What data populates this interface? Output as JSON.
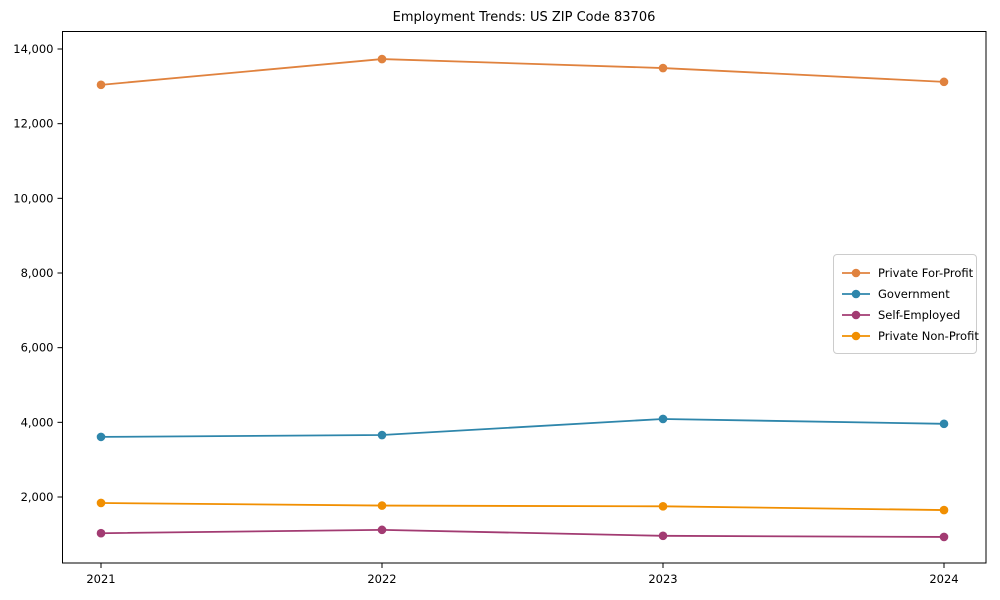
{
  "chart_data": {
    "type": "line",
    "title": "Employment Trends: US ZIP Code 83706",
    "categories": [
      "2021",
      "2022",
      "2023",
      "2024"
    ],
    "series": [
      {
        "name": "Private For-Profit",
        "color": "#E0823E",
        "values": [
          13040,
          13730,
          13490,
          13120
        ]
      },
      {
        "name": "Government",
        "color": "#2E86AB",
        "values": [
          3610,
          3660,
          4090,
          3960
        ]
      },
      {
        "name": "Self-Employed",
        "color": "#A23B72",
        "values": [
          1030,
          1120,
          960,
          930
        ]
      },
      {
        "name": "Private Non-Profit",
        "color": "#F18F01",
        "values": [
          1840,
          1770,
          1750,
          1650
        ]
      }
    ],
    "xlabel": "",
    "ylabel": "",
    "y_ticks": [
      2000,
      4000,
      6000,
      8000,
      10000,
      12000,
      14000
    ],
    "y_tick_labels": [
      "2,000",
      "4,000",
      "6,000",
      "8,000",
      "10,000",
      "12,000",
      "14,000"
    ],
    "ylim": [
      290,
      14370
    ],
    "grid": false,
    "legend_position": "center-right",
    "frame_color": "#000000",
    "background_color": "#ffffff"
  }
}
